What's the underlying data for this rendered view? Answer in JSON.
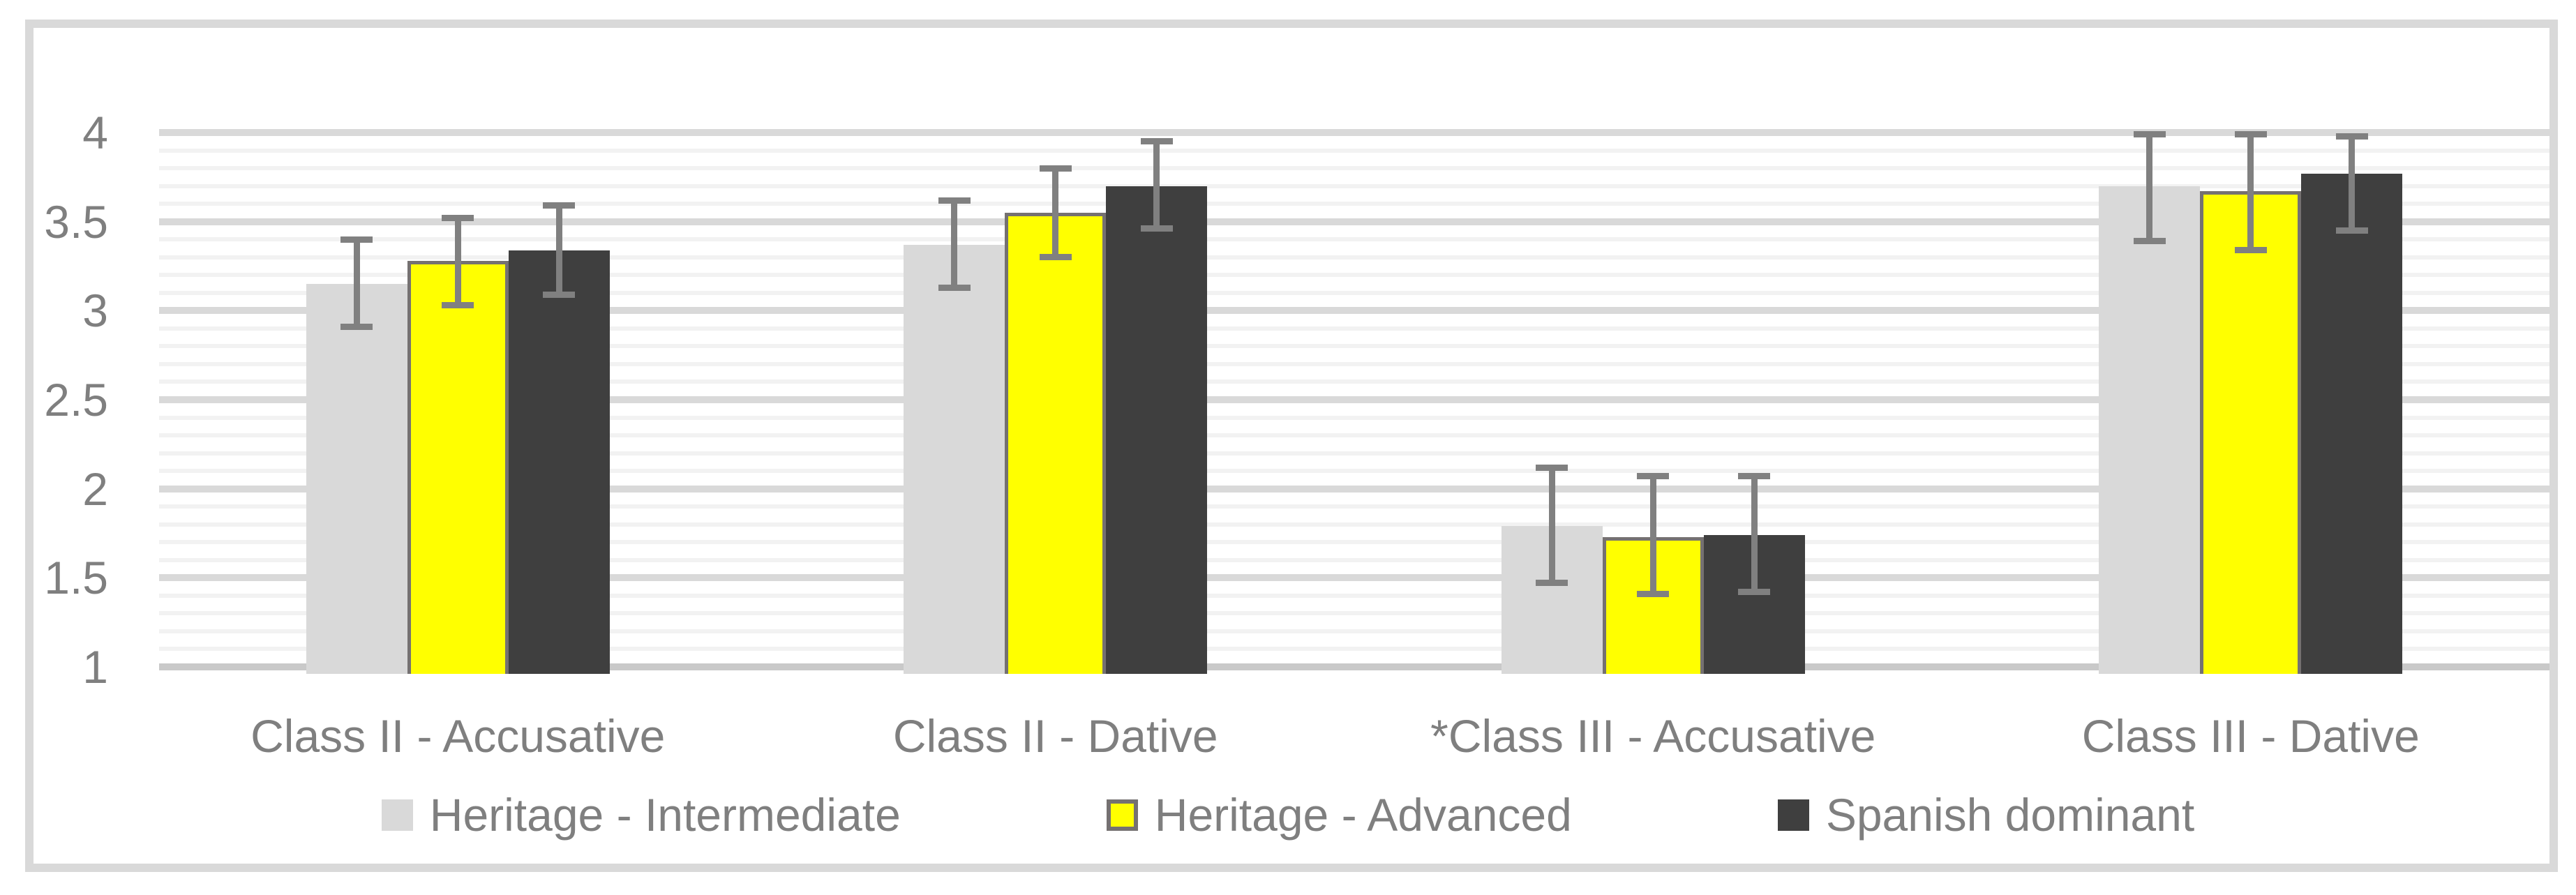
{
  "chart_data": {
    "type": "bar",
    "title": "",
    "xlabel": "",
    "ylabel": "",
    "categories": [
      "Class II - Accusative",
      "Class II - Dative",
      "*Class III - Accusative",
      "Class III - Dative"
    ],
    "series": [
      {
        "name": "Heritage - Intermediate",
        "color": "#d9d9d9",
        "values": [
          3.15,
          3.37,
          1.79,
          3.7
        ],
        "error_high": [
          3.4,
          3.62,
          2.12,
          3.99
        ],
        "error_low": [
          2.91,
          3.13,
          1.47,
          3.39
        ]
      },
      {
        "name": "Heritage - Advanced",
        "color": "#ffff00",
        "border_color": "#757171",
        "values": [
          3.28,
          3.55,
          1.73,
          3.67
        ],
        "error_high": [
          3.52,
          3.8,
          2.07,
          3.99
        ],
        "error_low": [
          3.03,
          3.3,
          1.41,
          3.34
        ]
      },
      {
        "name": "Spanish dominant",
        "color": "#3f3f3f",
        "values": [
          3.34,
          3.7,
          1.74,
          3.77
        ],
        "error_high": [
          3.59,
          3.95,
          2.07,
          3.98
        ],
        "error_low": [
          3.09,
          3.46,
          1.42,
          3.45
        ]
      }
    ],
    "y_axis": {
      "min": 1,
      "max": 4,
      "major_step": 0.5,
      "minor_step": 0.1,
      "tick_labels": [
        "1",
        "1.5",
        "2",
        "2.5",
        "3",
        "3.5",
        "4"
      ]
    },
    "legend_position": "bottom",
    "grid": true
  },
  "style": {
    "frame_border_color": "#d9d9d9",
    "major_grid_color": "#d9d9d9",
    "minor_grid_color": "#f2f2f2",
    "axis_line_color": "#c9c9c9",
    "error_bar_color": "#808080",
    "text_color": "#7f7f7f"
  }
}
